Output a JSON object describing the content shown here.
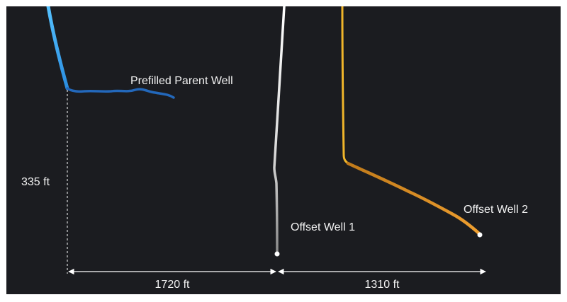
{
  "labels": {
    "parent_well": "Prefilled Parent Well",
    "offset_well_1": "Offset Well 1",
    "offset_well_2": "Offset Well 2",
    "vertical_offset": "335 ft",
    "spacing_1": "1720 ft",
    "spacing_2": "1310 ft"
  },
  "colors": {
    "background": "#1b1c20",
    "parent_well": "#2b7fd4",
    "offset_well_1": "#cfcfcf",
    "offset_well_2": "#e08a1e",
    "dimension_lines": "#ffffff"
  }
}
